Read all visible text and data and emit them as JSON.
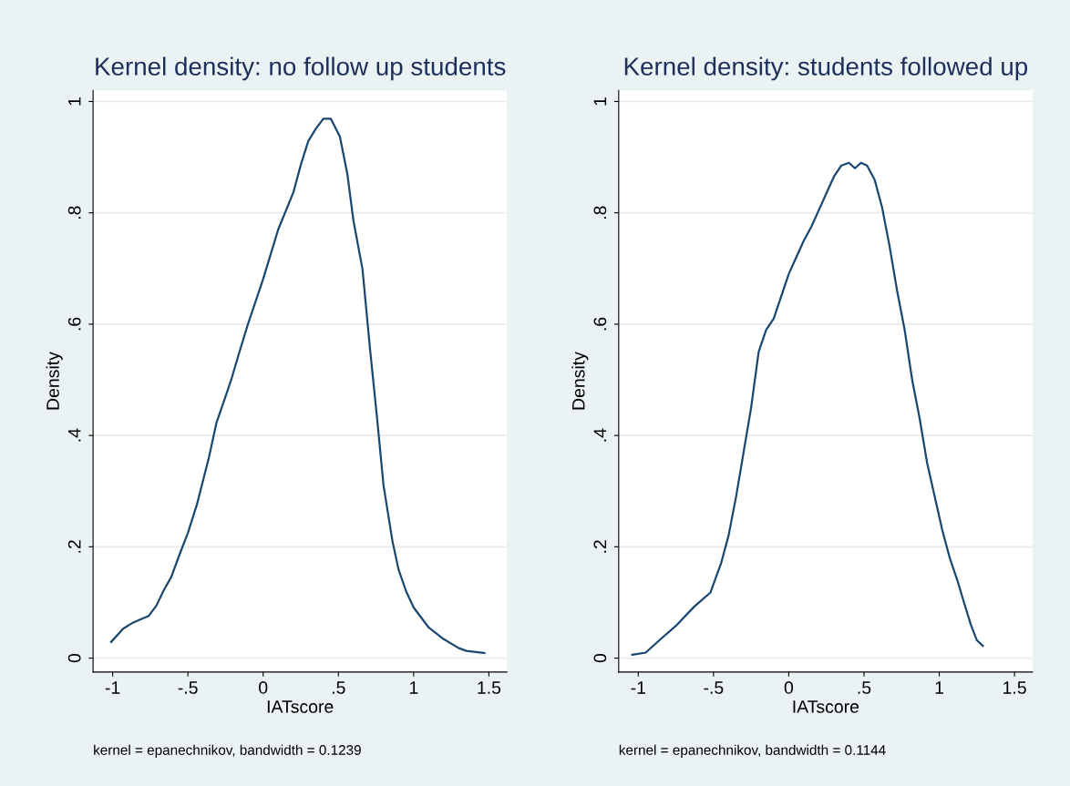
{
  "chart_data": [
    {
      "type": "line",
      "title": "Kernel density: no follow up students",
      "xlabel": "IATscore",
      "ylabel": "Density",
      "annotations": [
        "kernel = epanechnikov, bandwidth = 0.1239"
      ],
      "grid": "y",
      "legend": false,
      "marker": "none",
      "line_style": "solid",
      "xlim": [
        -1.13,
        1.62
      ],
      "ylim": [
        -0.025,
        1.02
      ],
      "xticks": [
        {
          "value": -1,
          "label": "-1"
        },
        {
          "value": -0.5,
          "label": "-.5"
        },
        {
          "value": 0,
          "label": "0"
        },
        {
          "value": 0.5,
          "label": ".5"
        },
        {
          "value": 1,
          "label": "1"
        },
        {
          "value": 1.5,
          "label": "1.5"
        }
      ],
      "yticks": [
        {
          "value": 0,
          "label": "0"
        },
        {
          "value": 0.2,
          "label": ".2"
        },
        {
          "value": 0.4,
          "label": ".4"
        },
        {
          "value": 0.6,
          "label": ".6"
        },
        {
          "value": 0.8,
          "label": ".8"
        },
        {
          "value": 1,
          "label": "1"
        }
      ],
      "x": [
        -1.01,
        -0.93,
        -0.87,
        -0.81,
        -0.76,
        -0.71,
        -0.66,
        -0.61,
        -0.56,
        -0.5,
        -0.44,
        -0.36,
        -0.31,
        -0.25,
        -0.21,
        -0.16,
        -0.1,
        0,
        0.1,
        0.2,
        0.25,
        0.3,
        0.35,
        0.4,
        0.45,
        0.51,
        0.56,
        0.6,
        0.66,
        0.71,
        0.76,
        0.8,
        0.86,
        0.9,
        0.95,
        1.0,
        1.1,
        1.2,
        1.3,
        1.35,
        1.47
      ],
      "series": [
        {
          "color": "#1a476f",
          "values": [
            0.029,
            0.053,
            0.063,
            0.07,
            0.076,
            0.094,
            0.122,
            0.146,
            0.183,
            0.225,
            0.276,
            0.361,
            0.423,
            0.47,
            0.502,
            0.548,
            0.601,
            0.681,
            0.77,
            0.836,
            0.886,
            0.929,
            0.951,
            0.969,
            0.969,
            0.937,
            0.869,
            0.786,
            0.699,
            0.556,
            0.423,
            0.31,
            0.209,
            0.159,
            0.12,
            0.091,
            0.055,
            0.034,
            0.018,
            0.013,
            0.009
          ]
        }
      ]
    },
    {
      "type": "line",
      "title": "Kernel density: students followed up",
      "xlabel": "IATscore",
      "ylabel": "Density",
      "annotations": [
        "kernel = epanechnikov, bandwidth = 0.1144"
      ],
      "grid": "y",
      "legend": false,
      "marker": "none",
      "line_style": "solid",
      "xlim": [
        -1.13,
        1.62
      ],
      "ylim": [
        -0.025,
        1.02
      ],
      "xticks": [
        {
          "value": -1,
          "label": "-1"
        },
        {
          "value": -0.5,
          "label": "-.5"
        },
        {
          "value": 0,
          "label": "0"
        },
        {
          "value": 0.5,
          "label": ".5"
        },
        {
          "value": 1,
          "label": "1"
        },
        {
          "value": 1.5,
          "label": "1.5"
        }
      ],
      "yticks": [
        {
          "value": 0,
          "label": "0"
        },
        {
          "value": 0.2,
          "label": ".2"
        },
        {
          "value": 0.4,
          "label": ".4"
        },
        {
          "value": 0.6,
          "label": ".6"
        },
        {
          "value": 0.8,
          "label": ".8"
        },
        {
          "value": 1,
          "label": "1"
        }
      ],
      "x": [
        -1.04,
        -0.95,
        -0.86,
        -0.75,
        -0.63,
        -0.52,
        -0.45,
        -0.4,
        -0.35,
        -0.3,
        -0.25,
        -0.2,
        -0.15,
        -0.1,
        -0.05,
        0,
        0.05,
        0.1,
        0.15,
        0.2,
        0.25,
        0.3,
        0.35,
        0.4,
        0.44,
        0.48,
        0.52,
        0.57,
        0.62,
        0.67,
        0.72,
        0.77,
        0.82,
        0.87,
        0.92,
        0.97,
        1.02,
        1.07,
        1.12,
        1.17,
        1.21,
        1.25,
        1.29
      ],
      "series": [
        {
          "color": "#1a476f",
          "values": [
            0.006,
            0.01,
            0.032,
            0.058,
            0.092,
            0.118,
            0.17,
            0.22,
            0.29,
            0.37,
            0.45,
            0.55,
            0.59,
            0.61,
            0.65,
            0.69,
            0.72,
            0.75,
            0.775,
            0.805,
            0.835,
            0.865,
            0.885,
            0.89,
            0.88,
            0.89,
            0.885,
            0.86,
            0.81,
            0.74,
            0.66,
            0.59,
            0.5,
            0.43,
            0.35,
            0.29,
            0.23,
            0.18,
            0.14,
            0.095,
            0.06,
            0.032,
            0.022
          ]
        }
      ]
    }
  ]
}
